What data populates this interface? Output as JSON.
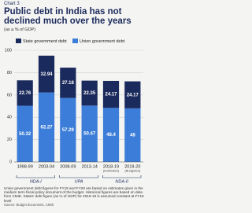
{
  "chart_label": "Chart 3",
  "chart_data": {
    "type": "stacked_bar",
    "title": "Public debt in India has not declined much over the years",
    "subtitle": "(as a % of GDP)",
    "categories": [
      "1998-99",
      "2003-04",
      "2008-09",
      "2013-14",
      "2018-19",
      "2019-20"
    ],
    "category_notes": [
      null,
      null,
      null,
      null,
      "(Estimates)",
      "(Budgeted)"
    ],
    "series": [
      {
        "name": "Union government debt",
        "color": "#3b7dd8",
        "values": [
          50.32,
          62.27,
          57.29,
          50.47,
          48.4,
          48
        ]
      },
      {
        "name": "State government debt",
        "color": "#1b2a5c",
        "values": [
          22.76,
          32.94,
          27.18,
          22.35,
          24.17,
          24.17
        ]
      }
    ],
    "ylim": [
      0,
      100
    ],
    "yticks": [
      0,
      20,
      40,
      60,
      80,
      100
    ],
    "grid": true,
    "periods": [
      {
        "label": "NDA-I",
        "span": 2
      },
      {
        "label": "UPA",
        "span": 2
      },
      {
        "label": "NDA-II",
        "span": 2
      }
    ]
  },
  "footnote": "Union government debt figures for FY19 and FY20 are based on estimates given in the medium term fiscal policy document of the budget. Historical figures are based on data from CMIE. States' debt figure (as % of GDP) for 2018-19 is assumed constant at FY19 level",
  "source": "Source: Budget documents, CMIE"
}
